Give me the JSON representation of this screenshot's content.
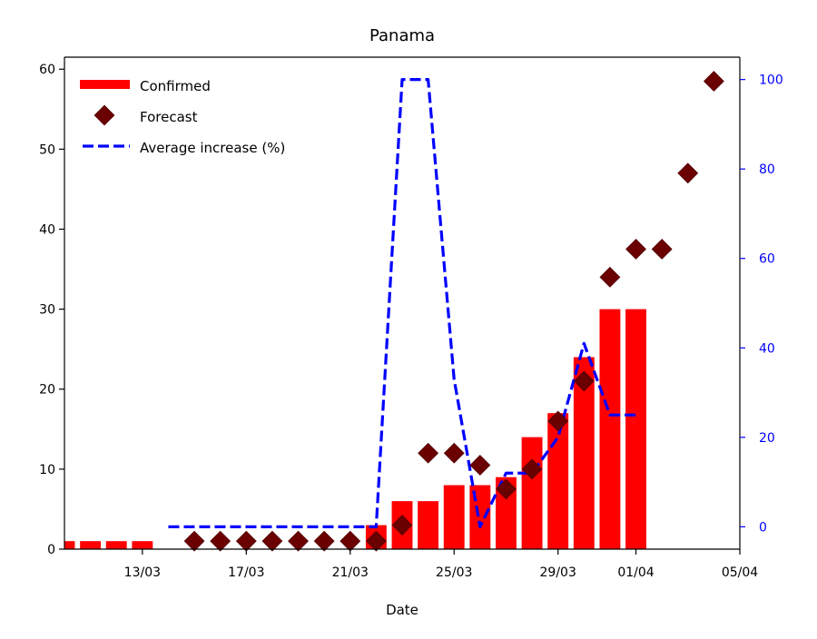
{
  "chart_data": {
    "type": "bar",
    "title": "Panama",
    "xlabel": "Date",
    "ylabel": "",
    "ylabel_right": "",
    "ylim": [
      0,
      61.5
    ],
    "ylim_right": [
      -5,
      105
    ],
    "xlim": [
      "2020-03-10",
      "2020-04-05"
    ],
    "x_ticks": [
      {
        "date": "2020-03-13",
        "label": "13/03"
      },
      {
        "date": "2020-03-17",
        "label": "17/03"
      },
      {
        "date": "2020-03-21",
        "label": "21/03"
      },
      {
        "date": "2020-03-25",
        "label": "25/03"
      },
      {
        "date": "2020-03-29",
        "label": "29/03"
      },
      {
        "date": "2020-04-01",
        "label": "01/04"
      },
      {
        "date": "2020-04-05",
        "label": "05/04"
      }
    ],
    "y_ticks": [
      "0",
      "10",
      "20",
      "30",
      "40",
      "50",
      "60"
    ],
    "y_ticks_right": [
      "0",
      "20",
      "40",
      "60",
      "80",
      "100"
    ],
    "legend_position": "top-left",
    "grid": false,
    "series": [
      {
        "name": "Confirmed",
        "kind": "bar",
        "axis": "left",
        "color": "#ff0000",
        "x": [
          "2020-03-10",
          "2020-03-11",
          "2020-03-12",
          "2020-03-13",
          "2020-03-14",
          "2020-03-15",
          "2020-03-16",
          "2020-03-17",
          "2020-03-18",
          "2020-03-19",
          "2020-03-20",
          "2020-03-21",
          "2020-03-22",
          "2020-03-23",
          "2020-03-24",
          "2020-03-25",
          "2020-03-26",
          "2020-03-27",
          "2020-03-28",
          "2020-03-29",
          "2020-03-30",
          "2020-03-31",
          "2020-04-01"
        ],
        "values": [
          1,
          1,
          1,
          1,
          0,
          0,
          0,
          0,
          0,
          0,
          0,
          0,
          3,
          6,
          6,
          8,
          8,
          9,
          14,
          17,
          24,
          30,
          30
        ]
      },
      {
        "name": "Forecast",
        "kind": "scatter",
        "axis": "left",
        "color": "#6b0000",
        "marker": "diamond",
        "x": [
          "2020-03-15",
          "2020-03-16",
          "2020-03-17",
          "2020-03-18",
          "2020-03-19",
          "2020-03-20",
          "2020-03-21",
          "2020-03-22",
          "2020-03-23",
          "2020-03-24",
          "2020-03-25",
          "2020-03-26",
          "2020-03-27",
          "2020-03-28",
          "2020-03-29",
          "2020-03-30",
          "2020-03-31",
          "2020-04-01",
          "2020-04-02",
          "2020-04-03",
          "2020-04-04"
        ],
        "values": [
          1,
          1,
          1,
          1,
          1,
          1,
          1,
          1,
          3,
          12,
          12,
          10.5,
          7.5,
          10,
          16,
          21,
          34,
          37.5,
          37.5,
          47,
          58.5
        ]
      },
      {
        "name": "Average increase (%)",
        "kind": "line",
        "axis": "right",
        "color": "#0000ff",
        "dash": "dashed",
        "x": [
          "2020-03-14",
          "2020-03-15",
          "2020-03-16",
          "2020-03-17",
          "2020-03-18",
          "2020-03-19",
          "2020-03-20",
          "2020-03-21",
          "2020-03-22",
          "2020-03-23",
          "2020-03-24",
          "2020-03-25",
          "2020-03-26",
          "2020-03-27",
          "2020-03-28",
          "2020-03-29",
          "2020-03-30",
          "2020-03-31",
          "2020-04-01"
        ],
        "values": [
          0,
          0,
          0,
          0,
          0,
          0,
          0,
          0,
          0,
          100,
          100,
          33,
          0,
          12,
          12,
          20,
          41,
          25,
          25
        ]
      }
    ]
  }
}
